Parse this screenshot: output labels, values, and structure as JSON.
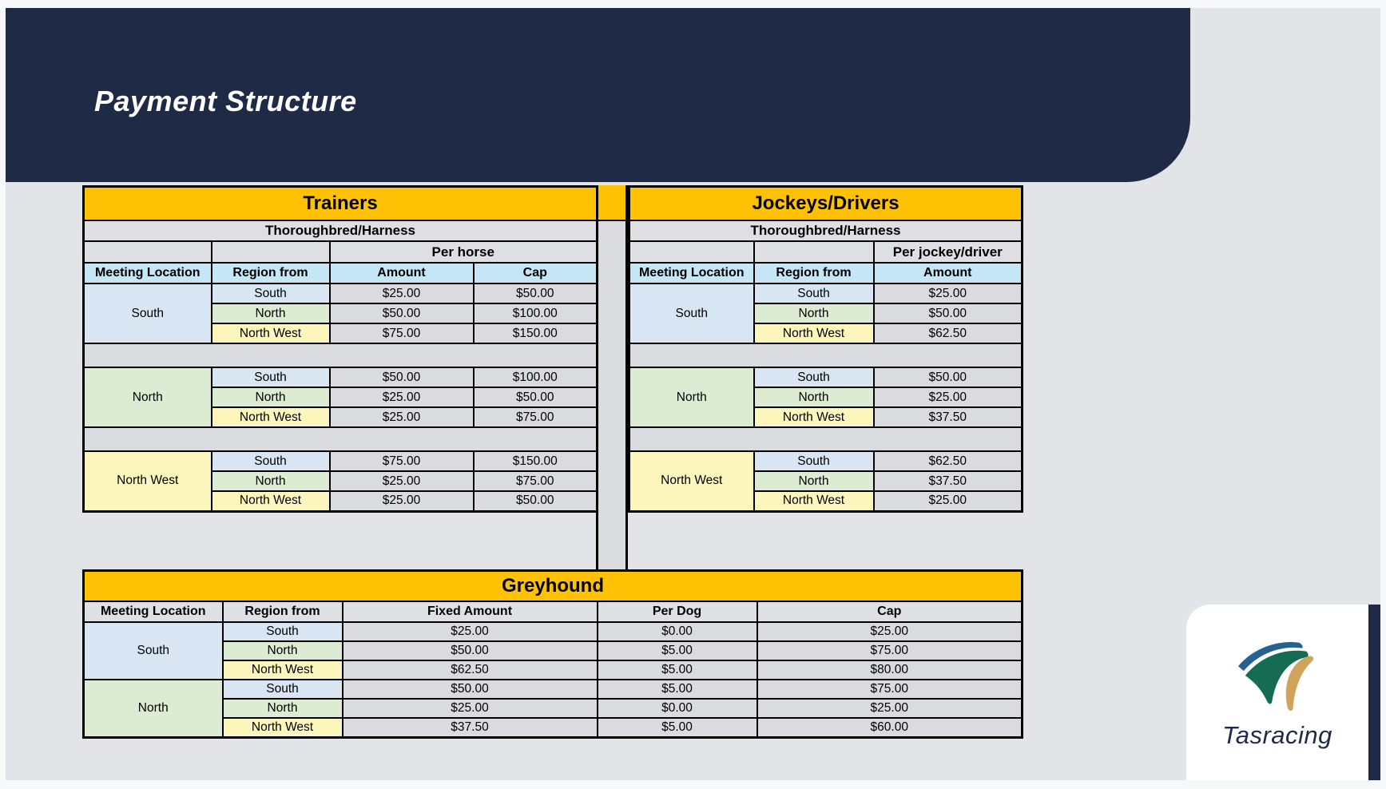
{
  "slide": {
    "title": "Payment Structure"
  },
  "logo": {
    "brand": "Tasracing"
  },
  "tables": {
    "trainers": {
      "title": "Trainers",
      "subtitle": "Thoroughbred/Harness",
      "span_header": "Per horse",
      "columns": [
        "Meeting Location",
        "Region from",
        "Amount",
        "Cap"
      ],
      "group_spacer": true,
      "groups": [
        {
          "location": "South",
          "rows": [
            [
              "South",
              "$25.00",
              "$50.00"
            ],
            [
              "North",
              "$50.00",
              "$100.00"
            ],
            [
              "North West",
              "$75.00",
              "$150.00"
            ]
          ]
        },
        {
          "location": "North",
          "rows": [
            [
              "South",
              "$50.00",
              "$100.00"
            ],
            [
              "North",
              "$25.00",
              "$50.00"
            ],
            [
              "North West",
              "$25.00",
              "$75.00"
            ]
          ]
        },
        {
          "location": "North West",
          "rows": [
            [
              "South",
              "$75.00",
              "$150.00"
            ],
            [
              "North",
              "$25.00",
              "$75.00"
            ],
            [
              "North West",
              "$25.00",
              "$50.00"
            ]
          ]
        }
      ]
    },
    "jockeys": {
      "title": "Jockeys/Drivers",
      "subtitle": "Thoroughbred/Harness",
      "span_header": "Per jockey/driver",
      "columns": [
        "Meeting Location",
        "Region from",
        "Amount"
      ],
      "group_spacer": true,
      "groups": [
        {
          "location": "South",
          "rows": [
            [
              "South",
              "$25.00"
            ],
            [
              "North",
              "$50.00"
            ],
            [
              "North West",
              "$62.50"
            ]
          ]
        },
        {
          "location": "North",
          "rows": [
            [
              "South",
              "$50.00"
            ],
            [
              "North",
              "$25.00"
            ],
            [
              "North West",
              "$37.50"
            ]
          ]
        },
        {
          "location": "North West",
          "rows": [
            [
              "South",
              "$62.50"
            ],
            [
              "North",
              "$37.50"
            ],
            [
              "North West",
              "$25.00"
            ]
          ]
        }
      ]
    },
    "greyhound": {
      "title": "Greyhound",
      "columns": [
        "Meeting Location",
        "Region from",
        "Fixed Amount",
        "Per Dog",
        "Cap"
      ],
      "group_spacer": false,
      "groups": [
        {
          "location": "South",
          "rows": [
            [
              "South",
              "$25.00",
              "$0.00",
              "$25.00"
            ],
            [
              "North",
              "$50.00",
              "$5.00",
              "$75.00"
            ],
            [
              "North West",
              "$62.50",
              "$5.00",
              "$80.00"
            ]
          ]
        },
        {
          "location": "North",
          "rows": [
            [
              "South",
              "$50.00",
              "$5.00",
              "$75.00"
            ],
            [
              "North",
              "$25.00",
              "$0.00",
              "$25.00"
            ],
            [
              "North West",
              "$37.50",
              "$5.00",
              "$60.00"
            ]
          ]
        }
      ]
    }
  },
  "colors": {
    "navy": "#1f2a47",
    "gold": "#ffc103",
    "slide-bg": "#e3e4e8",
    "outer-bg": "#f7f8fa",
    "cell-gray": "#d9dbde",
    "sub-gray": "#dddfe2",
    "head-blue": "#c4e6f5",
    "head-gray": "#dfe0e3",
    "pale-blue": "#d8e5f3",
    "pale-green": "#dbecd3",
    "pale-yellow": "#fcf5bc",
    "logo-blue": "#27618f",
    "logo-green": "#156c52",
    "logo-tan": "#cfa55e"
  }
}
